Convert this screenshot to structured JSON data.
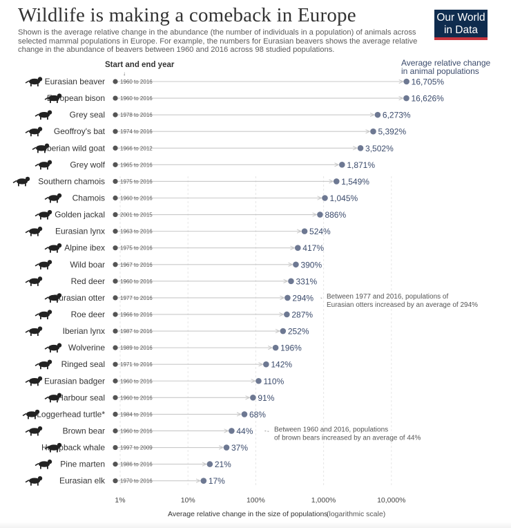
{
  "header": {
    "title": "Wildlife is making a comeback in Europe",
    "subtitle": "Shown is the average relative change in the abundance (the number of individuals in a population) of animals across selected mammal populations in Europe. For example, the numbers for Eurasian beavers shows the average relative change in the abundance of beavers between 1960 and 2016 across 98 studied populations.",
    "logo_line1": "Our World",
    "logo_line2": "in Data"
  },
  "colors": {
    "point": "#6d7892",
    "range_line": "#c8c8c8",
    "grid": "#e6e6e6",
    "logo_bg": "#0f2c4e",
    "logo_accent": "#c7353e"
  },
  "chart_data": {
    "type": "scatter",
    "title": "Wildlife is making a comeback in Europe",
    "xlabel": "Average relative change in the size of populations",
    "xlabel_note": "(logarithmic scale)",
    "x_scale": "log",
    "x_ticks": [
      "1%",
      "10%",
      "100%",
      "1,000%",
      "10,000%"
    ],
    "x_tick_values": [
      1,
      10,
      100,
      1000,
      10000
    ],
    "start_end_header": "Start and end year",
    "value_header_line1": "Average relative change",
    "value_header_line2": "in animal populations",
    "rows": [
      {
        "species": "Eurasian beaver",
        "years": "1960 to 2016",
        "value": 16705,
        "label": "16,705%",
        "icon": "beaver-icon"
      },
      {
        "species": "European bison",
        "years": "1960 to 2016",
        "value": 16626,
        "label": "16,626%",
        "icon": "bison-icon"
      },
      {
        "species": "Grey seal",
        "years": "1978 to 2016",
        "value": 6273,
        "label": "6,273%",
        "icon": "seal-icon"
      },
      {
        "species": "Geoffroy's bat",
        "years": "1974 to 2016",
        "value": 5392,
        "label": "5,392%",
        "icon": "bat-icon"
      },
      {
        "species": "Iberian wild goat",
        "years": "1966 to 2012",
        "value": 3502,
        "label": "3,502%",
        "icon": "goat-icon"
      },
      {
        "species": "Grey wolf",
        "years": "1965 to 2016",
        "value": 1871,
        "label": "1,871%",
        "icon": "wolf-icon"
      },
      {
        "species": "Southern chamois",
        "years": "1975 to 2016",
        "value": 1549,
        "label": "1,549%",
        "icon": "chamois-icon"
      },
      {
        "species": "Chamois",
        "years": "1960 to 2016",
        "value": 1045,
        "label": "1,045%",
        "icon": "chamois-icon"
      },
      {
        "species": "Golden jackal",
        "years": "2001 to 2015",
        "value": 886,
        "label": "886%",
        "icon": "jackal-icon"
      },
      {
        "species": "Eurasian lynx",
        "years": "1963 to 2016",
        "value": 524,
        "label": "524%",
        "icon": "lynx-icon"
      },
      {
        "species": "Alpine ibex",
        "years": "1975 to 2016",
        "value": 417,
        "label": "417%",
        "icon": "ibex-icon"
      },
      {
        "species": "Wild boar",
        "years": "1967 to 2016",
        "value": 390,
        "label": "390%",
        "icon": "boar-icon"
      },
      {
        "species": "Red deer",
        "years": "1960 to 2016",
        "value": 331,
        "label": "331%",
        "icon": "deer-icon"
      },
      {
        "species": "Eurasian otter",
        "years": "1977 to 2016",
        "value": 294,
        "label": "294%",
        "icon": "otter-icon"
      },
      {
        "species": "Roe deer",
        "years": "1966 to 2016",
        "value": 287,
        "label": "287%",
        "icon": "deer-icon"
      },
      {
        "species": "Iberian lynx",
        "years": "1987 to 2016",
        "value": 252,
        "label": "252%",
        "icon": "lynx-icon"
      },
      {
        "species": "Wolverine",
        "years": "1989 to 2016",
        "value": 196,
        "label": "196%",
        "icon": "wolverine-icon"
      },
      {
        "species": "Ringed seal",
        "years": "1971 to 2016",
        "value": 142,
        "label": "142%",
        "icon": "seal-icon"
      },
      {
        "species": "Eurasian badger",
        "years": "1960 to 2016",
        "value": 110,
        "label": "110%",
        "icon": "badger-icon"
      },
      {
        "species": "Harbour seal",
        "years": "1960 to 2016",
        "value": 91,
        "label": "91%",
        "icon": "seal-icon"
      },
      {
        "species": "Loggerhead turtle*",
        "years": "1984 to 2016",
        "value": 68,
        "label": "68%",
        "icon": "turtle-icon"
      },
      {
        "species": "Brown bear",
        "years": "1960 to 2016",
        "value": 44,
        "label": "44%",
        "icon": "bear-icon"
      },
      {
        "species": "Humpback whale",
        "years": "1997 to 2009",
        "value": 37,
        "label": "37%",
        "icon": "whale-icon"
      },
      {
        "species": "Pine marten",
        "years": "1986 to 2016",
        "value": 21,
        "label": "21%",
        "icon": "marten-icon"
      },
      {
        "species": "Eurasian elk",
        "years": "1970 to 2016",
        "value": 17,
        "label": "17%",
        "icon": "elk-icon"
      }
    ],
    "annotations": [
      {
        "row": 13,
        "line1": "Between 1977 and 2016, populations of",
        "line2": "Eurasian otters increased by an average of 294%"
      },
      {
        "row": 21,
        "line1": "Between 1960 and 2016, populations",
        "line2": "of brown bears increased by an average of 44%"
      }
    ]
  }
}
